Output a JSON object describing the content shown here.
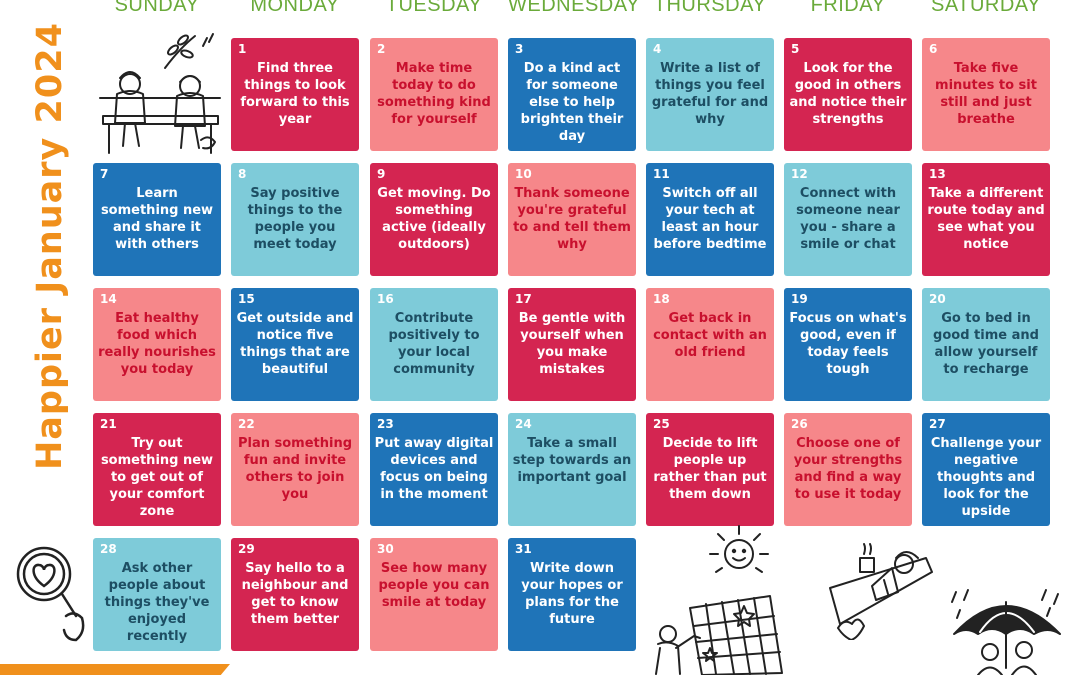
{
  "title": "Happier January 2024",
  "weekdays": [
    "SUNDAY",
    "MONDAY",
    "TUESDAY",
    "WEDNESDAY",
    "THURSDAY",
    "FRIDAY",
    "SATURDAY"
  ],
  "colors": {
    "red": "#d42551",
    "pink": "#f6878a",
    "blue": "#1f74b8",
    "teal": "#7ecbd9",
    "orange": "#f0901c",
    "green": "#6aaa3a"
  },
  "days": [
    {
      "n": "1",
      "t": "Find three things to look forward to this year",
      "c": "red"
    },
    {
      "n": "2",
      "t": "Make time today to do something kind for yourself",
      "c": "pink"
    },
    {
      "n": "3",
      "t": "Do a kind act for someone else to help brighten their day",
      "c": "blue"
    },
    {
      "n": "4",
      "t": "Write a list of things you feel grateful for and why",
      "c": "teal"
    },
    {
      "n": "5",
      "t": "Look for the good in others and notice their strengths",
      "c": "red"
    },
    {
      "n": "6",
      "t": "Take five minutes to sit still and just breathe",
      "c": "pink"
    },
    {
      "n": "7",
      "t": "Learn something new and share it with others",
      "c": "blue"
    },
    {
      "n": "8",
      "t": "Say positive things to the people you meet today",
      "c": "teal"
    },
    {
      "n": "9",
      "t": "Get moving. Do something active (ideally outdoors)",
      "c": "red"
    },
    {
      "n": "10",
      "t": "Thank someone you're grateful to and tell them why",
      "c": "pink"
    },
    {
      "n": "11",
      "t": "Switch off all your tech at least an hour before bedtime",
      "c": "blue"
    },
    {
      "n": "12",
      "t": "Connect with someone near you - share a smile or chat",
      "c": "teal"
    },
    {
      "n": "13",
      "t": "Take a different route today and see what you notice",
      "c": "red"
    },
    {
      "n": "14",
      "t": "Eat healthy food which really nourishes you today",
      "c": "pink"
    },
    {
      "n": "15",
      "t": "Get outside and notice five things that are beautiful",
      "c": "blue"
    },
    {
      "n": "16",
      "t": "Contribute positively to your local community",
      "c": "teal"
    },
    {
      "n": "17",
      "t": "Be gentle with yourself when you make mistakes",
      "c": "red"
    },
    {
      "n": "18",
      "t": "Get back in contact with an old friend",
      "c": "pink"
    },
    {
      "n": "19",
      "t": "Focus on what's good, even if today feels tough",
      "c": "blue"
    },
    {
      "n": "20",
      "t": "Go to bed in good time and allow yourself to recharge",
      "c": "teal"
    },
    {
      "n": "21",
      "t": "Try out something new to get out of your comfort zone",
      "c": "red"
    },
    {
      "n": "22",
      "t": "Plan something fun and invite others to join you",
      "c": "pink"
    },
    {
      "n": "23",
      "t": "Put away digital devices and focus on being in the moment",
      "c": "blue"
    },
    {
      "n": "24",
      "t": "Take a small step towards an important goal",
      "c": "teal"
    },
    {
      "n": "25",
      "t": "Decide to lift people up rather than put them down",
      "c": "red"
    },
    {
      "n": "26",
      "t": "Choose one of your strengths and find a way to use it today",
      "c": "pink"
    },
    {
      "n": "27",
      "t": "Challenge your negative thoughts and look for the upside",
      "c": "blue"
    },
    {
      "n": "28",
      "t": "Ask other people about things they've enjoyed recently",
      "c": "teal"
    },
    {
      "n": "29",
      "t": "Say hello to a neighbour and get to know them better",
      "c": "red"
    },
    {
      "n": "30",
      "t": "See how many people you can smile at today",
      "c": "pink"
    },
    {
      "n": "31",
      "t": "Write down your hopes or plans for the future",
      "c": "blue"
    }
  ],
  "illustrations": [
    "bench-couple-illustration",
    "magnifier-heart-icon",
    "calendar-planning-illustration",
    "smiling-face-icon",
    "reading-in-bed-illustration",
    "umbrella-couple-illustration"
  ]
}
